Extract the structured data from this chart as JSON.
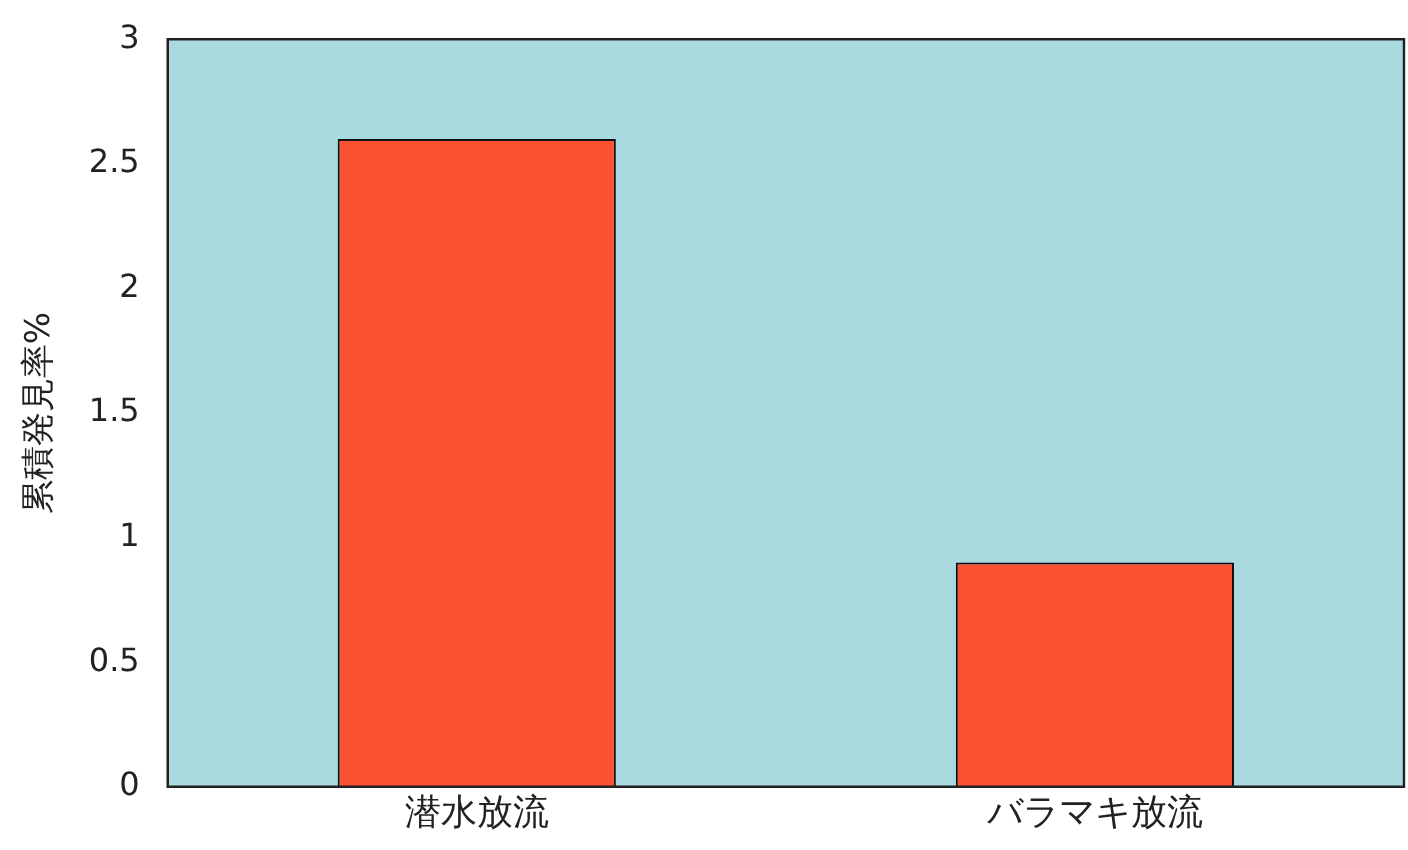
{
  "chart_data": {
    "type": "bar",
    "ylabel": "累積発見率%",
    "categories": [
      "潜水放流",
      "バラマキ放流"
    ],
    "values": [
      2.6,
      0.9
    ],
    "color": "#fa5232",
    "ylim": [
      0,
      3
    ],
    "yticks": [
      0,
      0.5,
      1,
      1.5,
      2,
      2.5,
      3
    ],
    "grid": false,
    "legend": false
  }
}
